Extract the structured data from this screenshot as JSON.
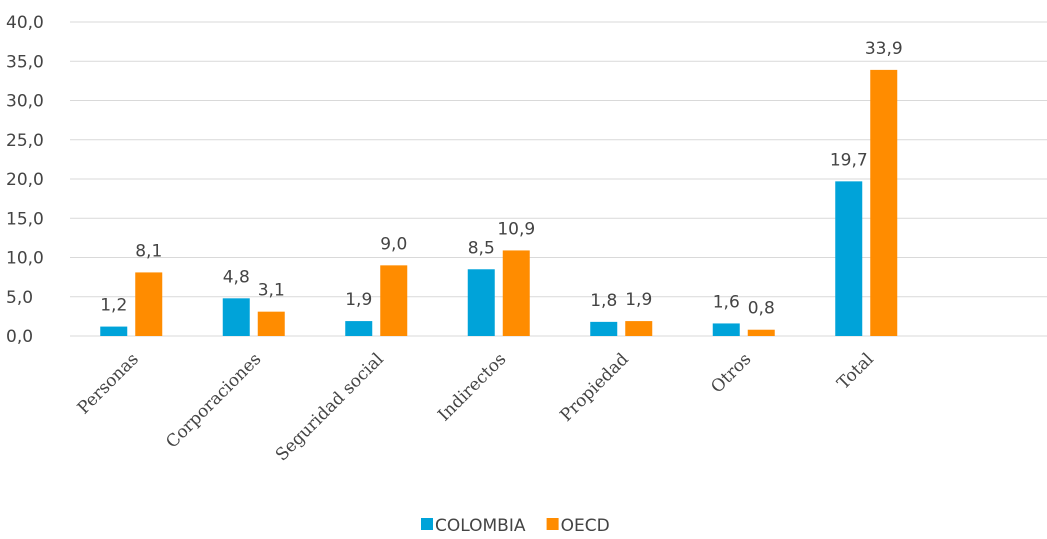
{
  "chart_data": {
    "type": "bar",
    "categories": [
      "Personas",
      "Corporaciones",
      "Seguridad social",
      "Indirectos",
      "Propiedad",
      "Otros",
      "Total"
    ],
    "series": [
      {
        "name": "COLOMBIA",
        "color": "#00a3d9",
        "values": [
          1.2,
          4.8,
          1.9,
          8.5,
          1.8,
          1.6,
          19.7
        ],
        "labels": [
          "1,2",
          "4,8",
          "1,9",
          "8,5",
          "1,8",
          "1,6",
          "19,7"
        ]
      },
      {
        "name": "OECD",
        "color": "#ff8c00",
        "values": [
          8.1,
          3.1,
          9.0,
          10.9,
          1.9,
          0.8,
          33.9
        ],
        "labels": [
          "8,1",
          "3,1",
          "9,0",
          "10,9",
          "1,9",
          "0,8",
          "33,9"
        ]
      }
    ],
    "ylim": [
      0,
      40
    ],
    "yticks": [
      "0,0",
      "5,0",
      "10,0",
      "15,0",
      "20,0",
      "25,0",
      "30,0",
      "35,0",
      "40,0"
    ],
    "grid": true,
    "legend_position": "bottom",
    "title": "",
    "xlabel": "",
    "ylabel": ""
  }
}
